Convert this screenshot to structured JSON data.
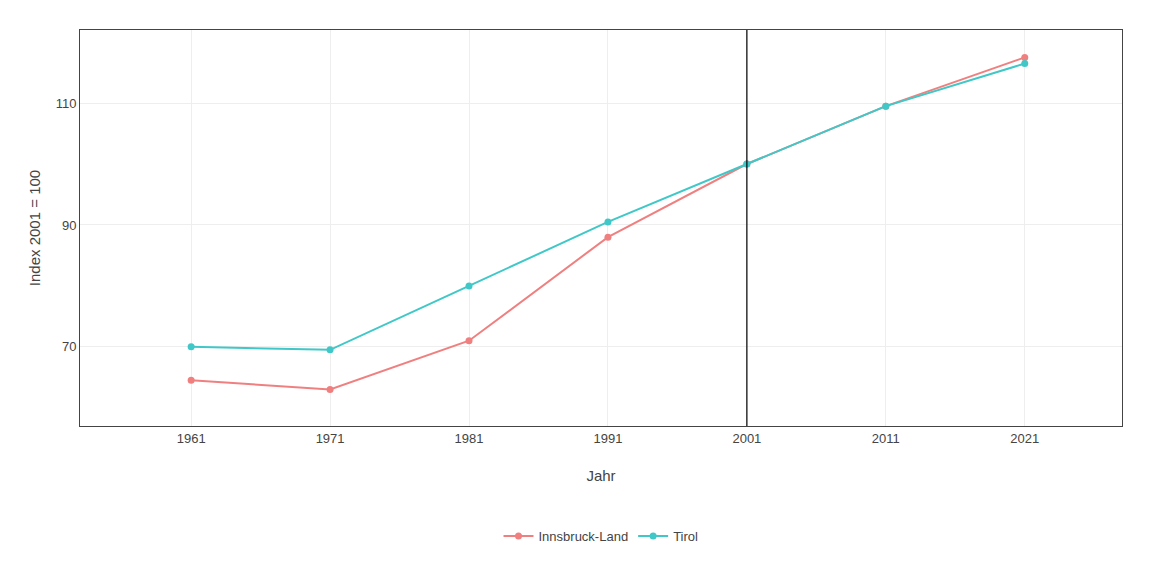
{
  "chart_data": {
    "type": "line",
    "x": [
      1961,
      1971,
      1981,
      1991,
      2001,
      2011,
      2021
    ],
    "series": [
      {
        "name": "Innsbruck-Land",
        "color": "#F08080",
        "values": [
          64.5,
          63.0,
          71.0,
          88.0,
          100.0,
          109.5,
          117.5
        ]
      },
      {
        "name": "Tirol",
        "color": "#40C8C8",
        "values": [
          70.0,
          69.5,
          80.0,
          90.5,
          100.0,
          109.5,
          116.5
        ]
      }
    ],
    "xlabel": "Jahr",
    "ylabel": "Index 2001 = 100",
    "xlim": [
      1953,
      2028
    ],
    "ylim": [
      57,
      122
    ],
    "xticks": [
      1961,
      1971,
      1981,
      1991,
      2001,
      2011,
      2021
    ],
    "yticks": [
      70,
      90,
      110
    ],
    "vlines": [
      {
        "x": 2001,
        "color": "#000000"
      }
    ],
    "grid": true,
    "legend": "bottom",
    "marker": "circle"
  }
}
